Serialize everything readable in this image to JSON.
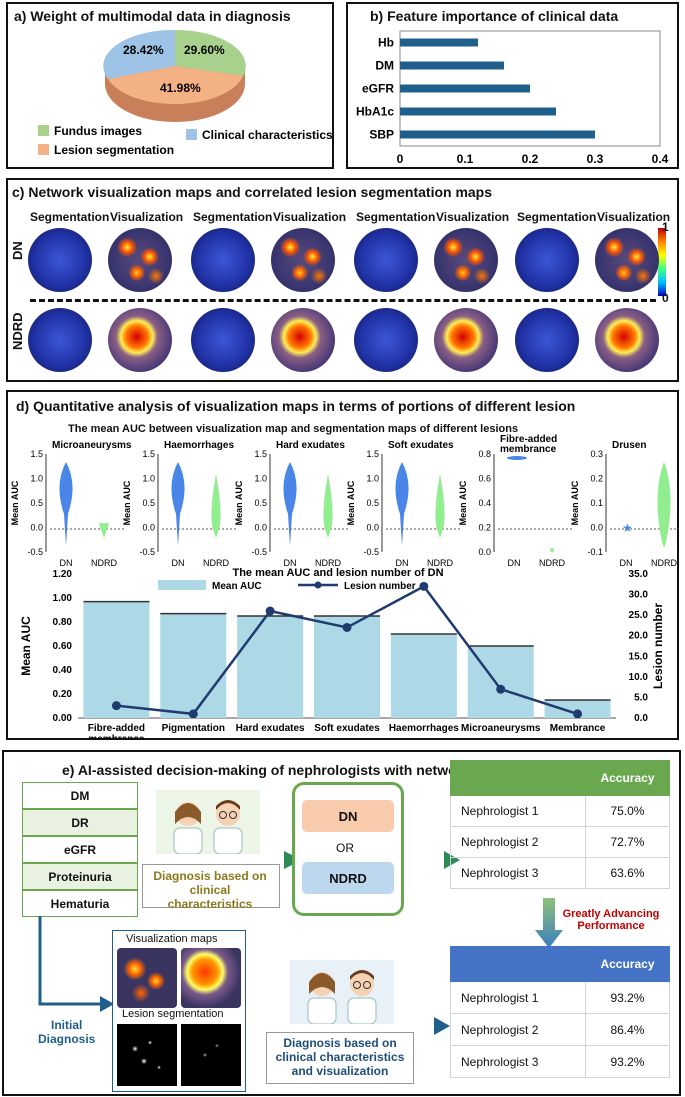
{
  "panel_a": {
    "title": "a) Weight of multimodal data in diagnosis",
    "pie": [
      {
        "label": "Fundus images",
        "value": 29.6,
        "text": "29.60%",
        "color": "#a9d18e"
      },
      {
        "label": "Lesion segmentation",
        "value": 41.98,
        "text": "41.98%",
        "color": "#f4b183"
      },
      {
        "label": "Clinical characteristics",
        "value": 28.42,
        "text": "28.42%",
        "color": "#9dc3e6"
      }
    ]
  },
  "panel_b": {
    "title": "b) Feature importance of clinical data",
    "chart_data": {
      "type": "bar",
      "orientation": "horizontal",
      "categories": [
        "Hb",
        "DM",
        "eGFR",
        "HbA1c",
        "SBP"
      ],
      "values": [
        0.12,
        0.16,
        0.2,
        0.24,
        0.3
      ],
      "xlim": [
        0,
        0.4
      ],
      "xticks": [
        "0",
        "0.1",
        "0.2",
        "0.3",
        "0.4"
      ],
      "bar_color": "#1f5f8b"
    }
  },
  "panel_c": {
    "title": "c) Network visualization maps and correlated lesion segmentation maps",
    "seg_label": "Segmentation",
    "vis_label": "Visualization",
    "row_dn": "DN",
    "row_ndrd": "NDRD",
    "colorbar_max": "1",
    "colorbar_min": "0"
  },
  "panel_d": {
    "title": "d) Quantitative analysis of visualization maps in terms of portions of different lesion",
    "violin_title": "The mean  AUC between visualization map and segmentation maps of different lesions",
    "violin_ylabel": "Mean AUC",
    "violins": [
      {
        "name": "Microaneurysms",
        "ticks": [
          "1.5",
          "1.0",
          "0.5",
          "0.0",
          "-0.5"
        ]
      },
      {
        "name": "Haemorrhages",
        "ticks": [
          "1.5",
          "1.0",
          "0.5",
          "0.0",
          "-0.5"
        ]
      },
      {
        "name": "Hard exudates",
        "ticks": [
          "1.5",
          "1.0",
          "0.5",
          "0.0",
          "-0.5"
        ]
      },
      {
        "name": "Soft exudates",
        "ticks": [
          "1.5",
          "1.0",
          "0.5",
          "0.0",
          "-0.5"
        ]
      },
      {
        "name": "Fibre-added\nmembrance",
        "ticks": [
          "0.8",
          "0.6",
          "0.4",
          "0.2",
          "0.0"
        ]
      },
      {
        "name": "Drusen",
        "ticks": [
          "0.3",
          "0.2",
          "0.1",
          "0.0",
          "-0.1"
        ]
      }
    ],
    "dn_label": "DN",
    "ndrd_label": "NDRD",
    "chart_data": {
      "type": "bar+line",
      "title": "The mean  AUC and lesion number of  DN",
      "categories": [
        "Fibre-added\nmembrance",
        "Pigmentation",
        "Hard exudates",
        "Soft exudates",
        "Haemorrhages",
        "Microaneurysms",
        "Membrance"
      ],
      "series": [
        {
          "name": "Mean AUC",
          "type": "bar",
          "axis": "left",
          "values": [
            0.97,
            0.87,
            0.85,
            0.85,
            0.7,
            0.6,
            0.15
          ],
          "color": "#add8e6"
        },
        {
          "name": "Lesion number",
          "type": "line",
          "axis": "right",
          "values": [
            3,
            1,
            26,
            22,
            32,
            7,
            1
          ],
          "color": "#1f3b70"
        }
      ],
      "ylabel_left": "Mean AUC",
      "ylabel_right": "Lesion number",
      "yticks_left": [
        "0.00",
        "0.20",
        "0.40",
        "0.60",
        "0.80",
        "1.00",
        "1.20"
      ],
      "yticks_right": [
        "0.0",
        "5.0",
        "10.0",
        "15.0",
        "20.0",
        "25.0",
        "30.0",
        "35.0"
      ],
      "ylim_left": [
        0,
        1.2
      ],
      "ylim_right": [
        0,
        35
      ]
    }
  },
  "panel_e": {
    "title": "e) AI-assisted decision-making of nephrologists with network visualization.",
    "features": [
      "DM",
      "DR",
      "eGFR",
      "Proteinuria",
      "Hematuria"
    ],
    "dx1": "Diagnosis based on\nclinical characteristics",
    "option1": "DN",
    "or": "OR",
    "option2": "NDRD",
    "table1_header": "Accuracy",
    "table1": [
      [
        "Nephrologist 1",
        "75.0%"
      ],
      [
        "Nephrologist 2",
        "72.7%"
      ],
      [
        "Nephrologist 3",
        "63.6%"
      ]
    ],
    "advance": "Greatly Advancing\nPerformance",
    "vis_maps": "Visualization maps",
    "lesion_seg": "Lesion segmentation",
    "initial": "Initial\nDiagnosis",
    "dx2": "Diagnosis based on\nclinical characteristics\nand visualization",
    "table2_header": "Accuracy",
    "table2": [
      [
        "Nephrologist 1",
        "93.2%"
      ],
      [
        "Nephrologist 2",
        "86.4%"
      ],
      [
        "Nephrologist 3",
        "93.2%"
      ]
    ]
  }
}
